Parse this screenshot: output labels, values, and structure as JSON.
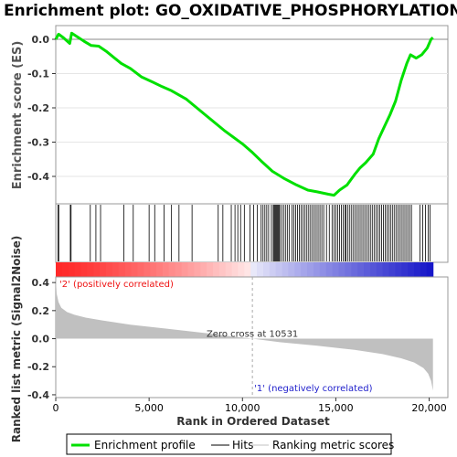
{
  "chart_data": {
    "title": "Enrichment plot: GO_OXIDATIVE_PHOSPHORYLATION",
    "es_panel": {
      "type": "line",
      "ylabel": "Enrichment score (ES)",
      "ylim": [
        -0.48,
        0.04
      ],
      "yticks": [
        "0.0",
        "-0.1",
        "-0.2",
        "-0.3",
        "-0.4"
      ],
      "ytick_values": [
        0.0,
        -0.1,
        -0.2,
        -0.3,
        -0.4
      ],
      "series": [
        {
          "x": [
            0,
            150,
            400,
            750,
            850,
            1500,
            1900,
            2300,
            2700,
            3500,
            4000,
            4600,
            5200,
            5700,
            6200,
            7000,
            8000,
            9000,
            10000,
            10531,
            11000,
            11600,
            12200,
            12900,
            13500,
            14000,
            14600,
            14900,
            15200,
            15600,
            16000,
            16300,
            16600,
            17000,
            17300,
            17600,
            17900,
            18200,
            18500,
            18800,
            19000,
            19300,
            19600,
            19900,
            20100,
            20200
          ],
          "y": [
            0.0,
            0.015,
            0.005,
            -0.012,
            0.018,
            -0.005,
            -0.018,
            -0.02,
            -0.035,
            -0.07,
            -0.085,
            -0.11,
            -0.125,
            -0.138,
            -0.15,
            -0.175,
            -0.22,
            -0.265,
            -0.305,
            -0.33,
            -0.355,
            -0.385,
            -0.405,
            -0.425,
            -0.44,
            -0.445,
            -0.452,
            -0.455,
            -0.44,
            -0.425,
            -0.395,
            -0.375,
            -0.36,
            -0.335,
            -0.29,
            -0.255,
            -0.22,
            -0.18,
            -0.12,
            -0.07,
            -0.045,
            -0.055,
            -0.045,
            -0.025,
            0.0,
            0.005
          ]
        }
      ]
    },
    "hits": [
      120,
      160,
      780,
      820,
      1850,
      2150,
      2400,
      3650,
      4150,
      5000,
      5300,
      5800,
      6200,
      6600,
      7300,
      8700,
      8950,
      9400,
      9600,
      9750,
      9900,
      10100,
      10400,
      10600,
      10800,
      11000,
      11100,
      11200,
      11300,
      11400,
      11550,
      11650,
      11700,
      11750,
      11800,
      11850,
      11900,
      11950,
      12000,
      12100,
      12200,
      12300,
      12400,
      12500,
      12650,
      12750,
      12850,
      12950,
      13050,
      13150,
      13250,
      13350,
      13450,
      13550,
      13650,
      13750,
      13850,
      13950,
      14050,
      14150,
      14250,
      14350,
      14500,
      14650,
      14800,
      14900,
      15000,
      15100,
      15200,
      15300,
      15400,
      15500,
      15550,
      15650,
      15750,
      15850,
      15950,
      16050,
      16150,
      16250,
      16350,
      16450,
      16550,
      16650,
      16750,
      16850,
      16950,
      17050,
      17150,
      17250,
      17350,
      17450,
      17550,
      17650,
      17750,
      17850,
      17950,
      18050,
      18150,
      18250,
      18350,
      18450,
      18550,
      18650,
      18750,
      18850,
      18950,
      19050,
      19500,
      19650,
      19800,
      19950,
      20050
    ],
    "metric_panel": {
      "type": "area",
      "ylabel": "Ranked list metric (Signal2Noise)",
      "xlabel": "Rank in Ordered Dataset",
      "ylim": [
        -0.42,
        0.44
      ],
      "yticks": [
        "0.4",
        "0.2",
        "0.0",
        "-0.2",
        "-0.4"
      ],
      "ytick_values": [
        0.4,
        0.2,
        0.0,
        -0.2,
        -0.4
      ],
      "xlim": [
        0,
        21000
      ],
      "xticks": [
        "0",
        "5,000",
        "10,000",
        "15,000",
        "20,000"
      ],
      "xtick_values": [
        0,
        5000,
        10000,
        15000,
        20000
      ],
      "x": [
        0,
        50,
        150,
        300,
        600,
        1000,
        1600,
        2500,
        4000,
        6000,
        8000,
        9500,
        10531,
        12000,
        14000,
        16000,
        17500,
        18500,
        19200,
        19700,
        19950,
        20100,
        20200
      ],
      "y": [
        0.44,
        0.32,
        0.26,
        0.22,
        0.19,
        0.17,
        0.15,
        0.13,
        0.1,
        0.07,
        0.04,
        0.015,
        0.0,
        -0.025,
        -0.05,
        -0.08,
        -0.11,
        -0.14,
        -0.17,
        -0.21,
        -0.25,
        -0.3,
        -0.37
      ],
      "zero_cross": 10531,
      "zero_cross_label": "Zero cross at 10531",
      "pos_label": "'2' (positively correlated)",
      "neg_label": "'1' (negatively correlated)"
    },
    "n_genes": 20200,
    "legend": {
      "position": "bottom",
      "items": [
        "Enrichment profile",
        "Hits",
        "Ranking metric scores"
      ]
    },
    "colors": {
      "es_line": "#00e000",
      "hits": "#000000",
      "metric_fill": "#c0c0c0",
      "positive": "#ff0000",
      "negative": "#0000cc"
    }
  }
}
